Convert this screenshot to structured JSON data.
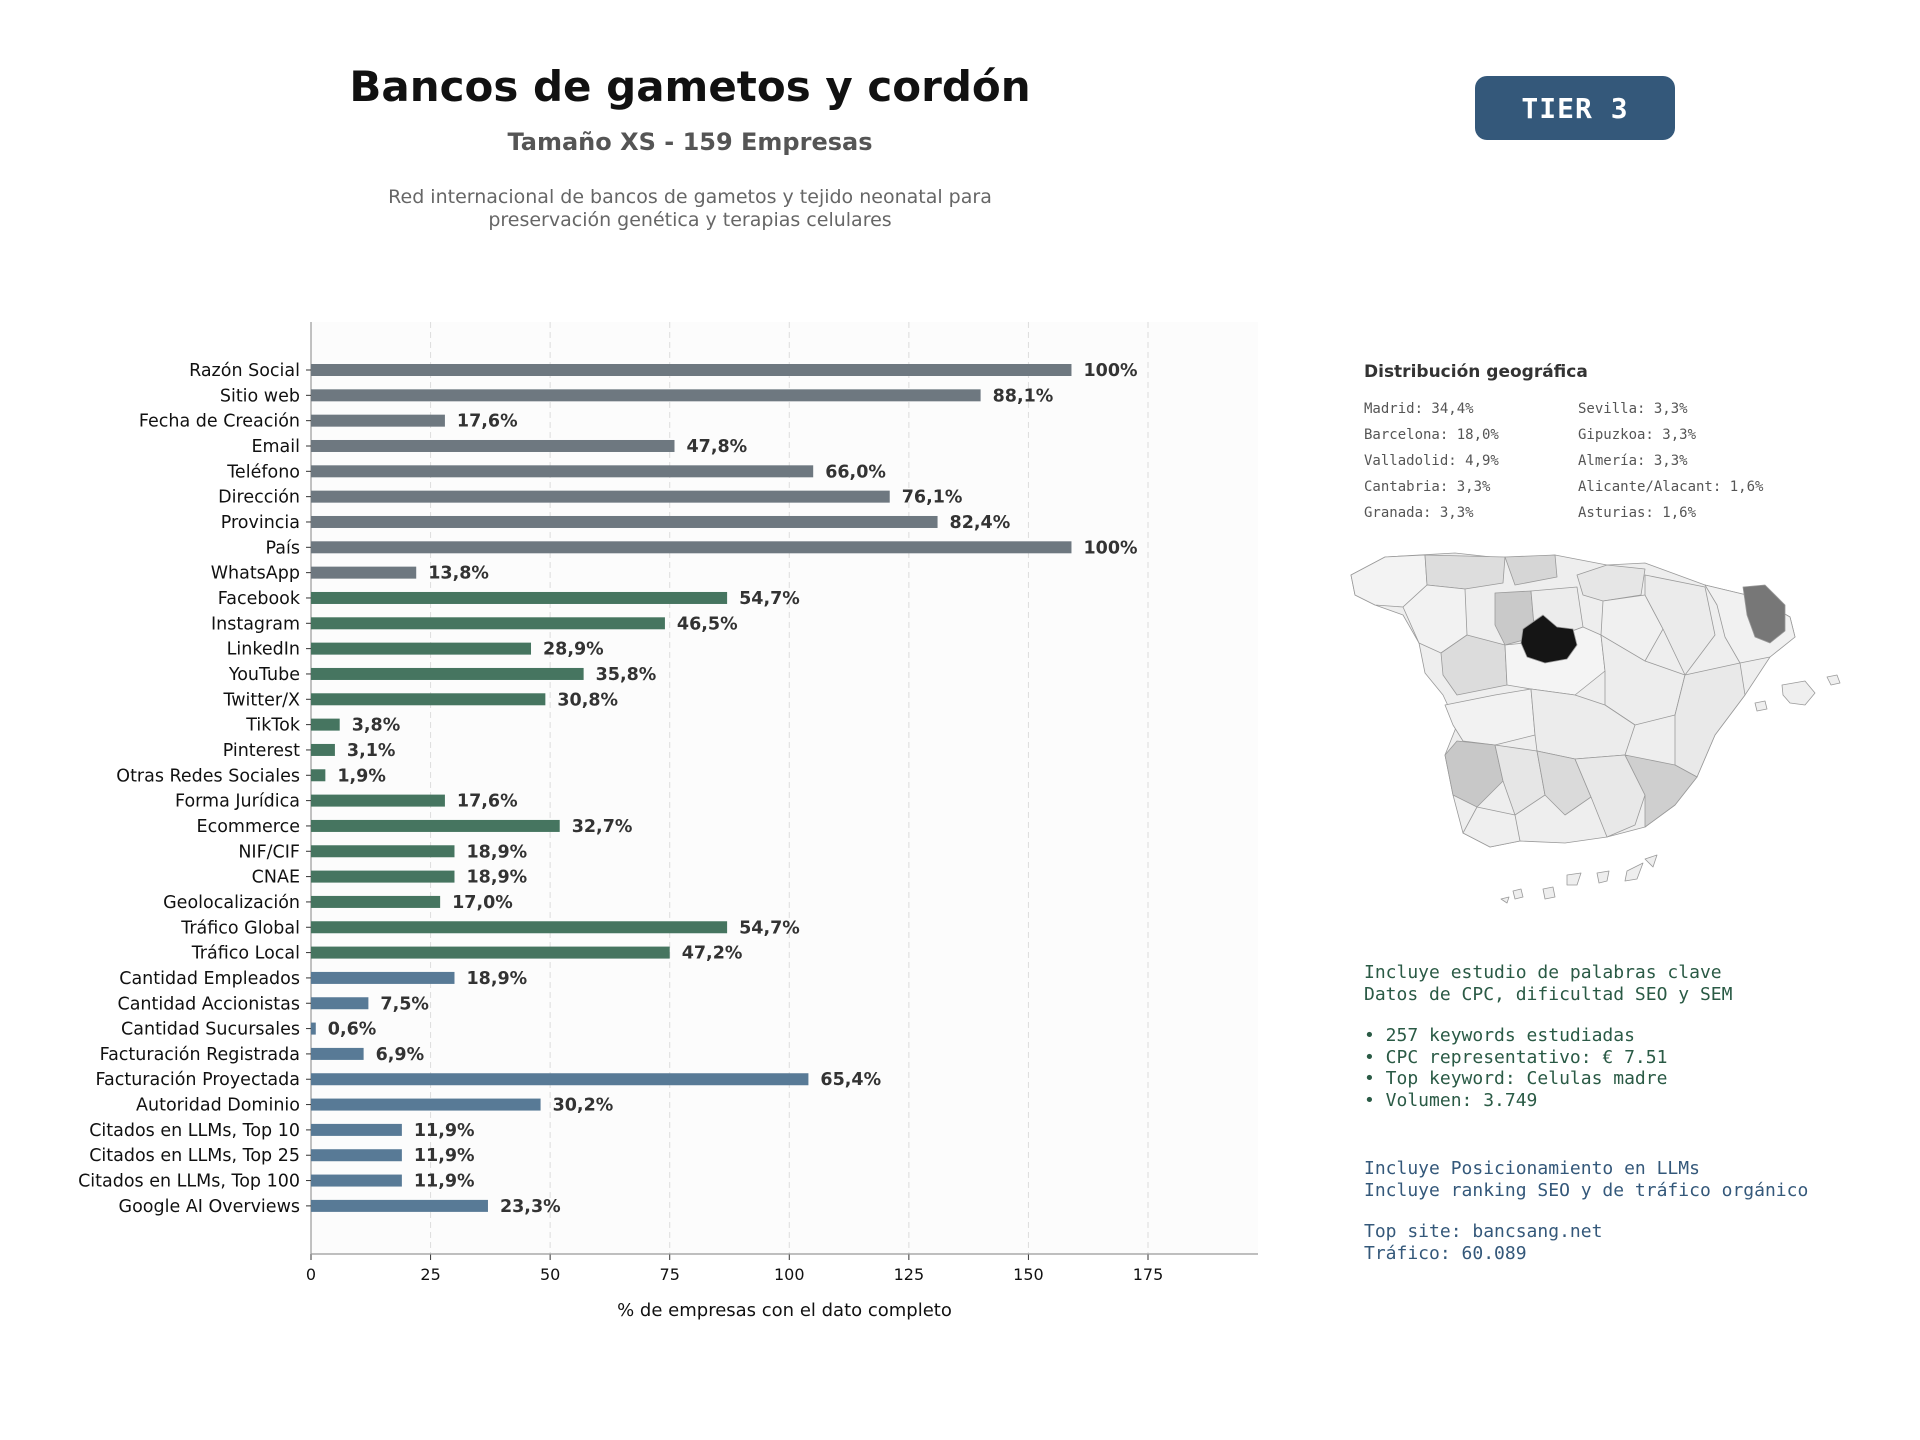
{
  "header": {
    "title": "Bancos de gametos y cordón",
    "subtitle": "Tamaño XS - 159 Empresas",
    "description_line1": "Red internacional de bancos de gametos y tejido neonatal para",
    "description_line2": "preservación genética y terapias celulares"
  },
  "tier_badge": "TIER 3",
  "colors": {
    "gray": "#6e7880",
    "green": "#467560",
    "blue": "#587a96",
    "tier_bg": "#34587a"
  },
  "chart_data": {
    "type": "bar",
    "orientation": "horizontal",
    "xlabel": "% de empresas con el dato completo",
    "xlim": [
      0,
      199
    ],
    "xticks": [
      0,
      25,
      50,
      75,
      100,
      125,
      150,
      175
    ],
    "grid": "vertical dashed",
    "categories": [
      "Razón Social",
      "Sitio web",
      "Fecha de Creación",
      "Email",
      "Teléfono",
      "Dirección",
      "Provincia",
      "País",
      "WhatsApp",
      "Facebook",
      "Instagram",
      "LinkedIn",
      "YouTube",
      "Twitter/X",
      "TikTok",
      "Pinterest",
      "Otras Redes Sociales",
      "Forma Jurídica",
      "Ecommerce",
      "NIF/CIF",
      "CNAE",
      "Geolocalización",
      "Tráfico Global",
      "Tráfico Local",
      "Cantidad Empleados",
      "Cantidad Accionistas",
      "Cantidad Sucursales",
      "Facturación Registrada",
      "Facturación Proyectada",
      "Autoridad Dominio",
      "Citados en LLMs, Top 10",
      "Citados en LLMs, Top 25",
      "Citados en LLMs, Top 100",
      "Google AI Overviews"
    ],
    "values": [
      159,
      140,
      28,
      76,
      105,
      121,
      131,
      159,
      22,
      87,
      74,
      46,
      57,
      49,
      6,
      5,
      3,
      28,
      52,
      30,
      30,
      27,
      87,
      75,
      30,
      12,
      1,
      11,
      104,
      48,
      19,
      19,
      19,
      37
    ],
    "value_labels": [
      "100%",
      "88,1%",
      "17,6%",
      "47,8%",
      "66,0%",
      "76,1%",
      "82,4%",
      "100%",
      "13,8%",
      "54,7%",
      "46,5%",
      "28,9%",
      "35,8%",
      "30,8%",
      "3,8%",
      "3,1%",
      "1,9%",
      "17,6%",
      "32,7%",
      "18,9%",
      "18,9%",
      "17,0%",
      "54,7%",
      "47,2%",
      "18,9%",
      "7,5%",
      "0,6%",
      "6,9%",
      "65,4%",
      "30,2%",
      "11,9%",
      "11,9%",
      "11,9%",
      "23,3%"
    ],
    "color_groups": [
      "gray",
      "gray",
      "gray",
      "gray",
      "gray",
      "gray",
      "gray",
      "gray",
      "gray",
      "green",
      "green",
      "green",
      "green",
      "green",
      "green",
      "green",
      "green",
      "green",
      "green",
      "green",
      "green",
      "green",
      "green",
      "green",
      "blue",
      "blue",
      "blue",
      "blue",
      "blue",
      "blue",
      "blue",
      "blue",
      "blue",
      "blue"
    ]
  },
  "geo": {
    "title": "Distribución geográfica",
    "items": [
      "Madrid: 34,4%",
      "Sevilla: 3,3%",
      "Barcelona: 18,0%",
      "Gipuzkoa: 3,3%",
      "Valladolid: 4,9%",
      "Almería: 3,3%",
      "Cantabria: 3,3%",
      "Alicante/Alacant: 1,6%",
      "Granada: 3,3%",
      "Asturias: 1,6%"
    ]
  },
  "keywords": {
    "line1": "Incluye estudio de palabras clave",
    "line2": "Datos de CPC, dificultad SEO y SEM",
    "bullet1": "• 257 keywords estudiadas",
    "bullet2": "• CPC representativo: € 7.51",
    "bullet3": "• Top keyword: Celulas madre",
    "bullet4": "• Volumen: 3.749"
  },
  "llm": {
    "line1": "Incluye Posicionamiento en LLMs",
    "line2": "Incluye ranking SEO y de tráfico orgánico",
    "top_site": "Top site: bancsang.net",
    "traffic": "Tráfico: 60.089"
  }
}
